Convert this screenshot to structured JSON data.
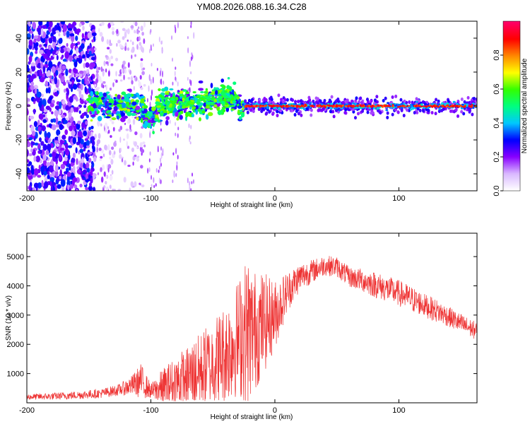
{
  "figure": {
    "title": "YM08.2026.088.16.34.C28"
  },
  "chart_data": [
    {
      "type": "heatmap",
      "xlabel": "Height of straight line (km)",
      "ylabel": "Frequency (Hz)",
      "xlim": [
        -200,
        163
      ],
      "ylim": [
        -50,
        50
      ],
      "x_ticks": [
        -200,
        -100,
        0,
        100
      ],
      "y_ticks": [
        -40,
        -20,
        0,
        20,
        40
      ],
      "colorbar": {
        "label": "Normalized spectral amplitude",
        "range": [
          0,
          1
        ],
        "ticks": [
          0.0,
          0.2,
          0.4,
          0.6,
          0.8
        ],
        "colors": [
          "#ffffff",
          "#d9b8ff",
          "#8800ff",
          "#0000ff",
          "#00c8ff",
          "#00ff80",
          "#33ff00",
          "#ffff00",
          "#ff8800",
          "#ff0000",
          "#ff0066"
        ]
      },
      "regions": [
        {
          "x_range": [
            -200,
            -145
          ],
          "description_value": 0.25,
          "freq_spread_hz": 50
        },
        {
          "x_range": [
            -145,
            -105
          ],
          "description_value": 0.1,
          "freq_spread_hz": 50
        },
        {
          "x_range": [
            -150,
            -25
          ],
          "description_value": 0.45,
          "freq_spread_hz": 8
        },
        {
          "x_range": [
            -25,
            163
          ],
          "description_value": 0.95,
          "freq_spread_hz": 1
        }
      ]
    },
    {
      "type": "line",
      "xlabel": "Height of straight line (km)",
      "ylabel": "SNR (10 * v/v)",
      "xlim": [
        -200,
        163
      ],
      "ylim": [
        0,
        5800
      ],
      "x_ticks": [
        -200,
        -100,
        0,
        100
      ],
      "y_ticks": [
        1000,
        2000,
        3000,
        4000,
        5000
      ],
      "series": [
        {
          "name": "SNR",
          "color": "#ee3333",
          "x": [
            -200,
            -180,
            -160,
            -140,
            -125,
            -115,
            -108,
            -100,
            -90,
            -80,
            -70,
            -60,
            -50,
            -40,
            -30,
            -22,
            -18,
            -10,
            0,
            10,
            20,
            30,
            40,
            50,
            60,
            70,
            80,
            90,
            100,
            110,
            120,
            130,
            140,
            150,
            163
          ],
          "y": [
            200,
            220,
            260,
            320,
            450,
            600,
            750,
            400,
            500,
            700,
            900,
            1100,
            1400,
            1700,
            2200,
            2500,
            2400,
            2700,
            3000,
            3800,
            4300,
            4500,
            4700,
            4650,
            4300,
            4200,
            4050,
            3900,
            3750,
            3550,
            3350,
            3150,
            2950,
            2700,
            2450
          ],
          "noise_amplitude": [
            100,
            120,
            140,
            160,
            200,
            350,
            600,
            250,
            700,
            900,
            1100,
            1300,
            1500,
            1700,
            2000,
            2600,
            2200,
            1800,
            1200,
            700,
            500,
            400,
            350,
            350,
            350,
            400,
            450,
            450,
            450,
            450,
            400,
            400,
            350,
            350,
            300
          ]
        }
      ]
    }
  ]
}
